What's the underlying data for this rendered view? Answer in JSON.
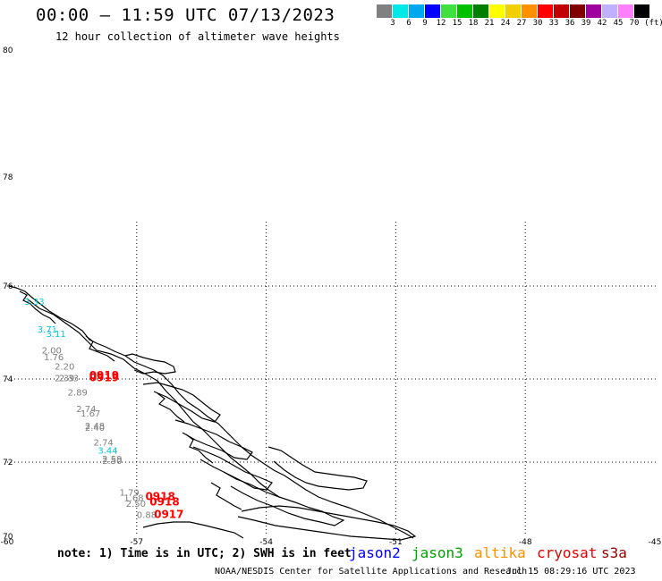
{
  "header": {
    "title": "00:00 — 11:59 UTC 07/13/2023",
    "subtitle": "12 hour collection of altimeter wave heights"
  },
  "colorbar": {
    "unit": "(ft)",
    "colors": [
      "#808080",
      "#00e8e8",
      "#00a8f0",
      "#0000ff",
      "#40e040",
      "#00c000",
      "#008000",
      "#ffff00",
      "#f0d000",
      "#ff9000",
      "#ff0000",
      "#c00000",
      "#800000",
      "#a000a0",
      "#c0b0ff",
      "#ff80ff",
      "#000000"
    ],
    "labels": [
      "3",
      "6",
      "9",
      "12",
      "15",
      "18",
      "21",
      "24",
      "27",
      "30",
      "33",
      "36",
      "39",
      "42",
      "45",
      "70"
    ]
  },
  "axes": {
    "lat_labels": [
      "80",
      "78",
      "76",
      "74",
      "72",
      "70"
    ],
    "lon_labels": [
      "-60",
      "-57",
      "-54",
      "-51",
      "-48",
      "-45"
    ]
  },
  "wave_labels": [
    {
      "text": "3.33",
      "color": "#00c8e0",
      "lon": -59.6,
      "lat": 75.6
    },
    {
      "text": "3.71",
      "color": "#00c8e0",
      "lon": -59.3,
      "lat": 75.0
    },
    {
      "text": "3.11",
      "color": "#00c8e0",
      "lon": -59.1,
      "lat": 74.9
    },
    {
      "text": "2.00",
      "color": "#808080",
      "lon": -59.2,
      "lat": 74.55
    },
    {
      "text": "1.76",
      "color": "#808080",
      "lon": -59.15,
      "lat": 74.4
    },
    {
      "text": "2.20",
      "color": "#808080",
      "lon": -58.9,
      "lat": 74.2
    },
    {
      "text": "2.39",
      "color": "#808080",
      "lon": -58.9,
      "lat": 73.95
    },
    {
      "text": "2.33",
      "color": "#808080",
      "lon": -58.8,
      "lat": 73.95
    },
    {
      "text": "2.89",
      "color": "#808080",
      "lon": -58.6,
      "lat": 73.6
    },
    {
      "text": "2.74",
      "color": "#808080",
      "lon": -58.4,
      "lat": 73.2
    },
    {
      "text": "1.67",
      "color": "#808080",
      "lon": -58.3,
      "lat": 73.1
    },
    {
      "text": "2.48",
      "color": "#808080",
      "lon": -58.2,
      "lat": 72.8
    },
    {
      "text": "2.40",
      "color": "#808080",
      "lon": -58.2,
      "lat": 72.75
    },
    {
      "text": "2.74",
      "color": "#808080",
      "lon": -58.0,
      "lat": 72.4
    },
    {
      "text": "3.44",
      "color": "#00c8e0",
      "lon": -57.9,
      "lat": 72.2
    },
    {
      "text": "2.59",
      "color": "#808080",
      "lon": -57.8,
      "lat": 72.0
    },
    {
      "text": "2.50",
      "color": "#808080",
      "lon": -57.8,
      "lat": 71.95
    },
    {
      "text": "1.79",
      "color": "#808080",
      "lon": -57.4,
      "lat": 71.1
    },
    {
      "text": "1.68",
      "color": "#808080",
      "lon": -57.3,
      "lat": 70.95
    },
    {
      "text": "2.50",
      "color": "#808080",
      "lon": -57.25,
      "lat": 70.8
    },
    {
      "text": "0.88",
      "color": "#808080",
      "lon": -57.0,
      "lat": 70.5
    },
    {
      "text": "0919",
      "color": "#ff0000",
      "lon": -58.1,
      "lat": 74.0
    },
    {
      "text": "0919",
      "color": "#ff0000",
      "lon": -58.1,
      "lat": 73.95
    },
    {
      "text": "0918",
      "color": "#ff0000",
      "lon": -56.8,
      "lat": 70.97
    },
    {
      "text": "0918",
      "color": "#ff0000",
      "lon": -56.7,
      "lat": 70.83
    },
    {
      "text": "0917",
      "color": "#ff0000",
      "lon": -56.6,
      "lat": 70.5
    }
  ],
  "footer": {
    "note": "note: 1) Time is in UTC; 2) SWH is in feet",
    "satellites": [
      {
        "name": "jason2",
        "color": "#0000ff"
      },
      {
        "name": "jason3",
        "color": "#00a000"
      },
      {
        "name": "altika",
        "color": "#ff9000"
      },
      {
        "name": "cryosat",
        "color": "#e00000"
      },
      {
        "name": "s3a",
        "color": "#900000"
      }
    ],
    "credit": "NOAA/NESDIS Center for Satellite Applications and Research",
    "timestamp": "Jul 15 08:29:16 UTC 2023"
  }
}
